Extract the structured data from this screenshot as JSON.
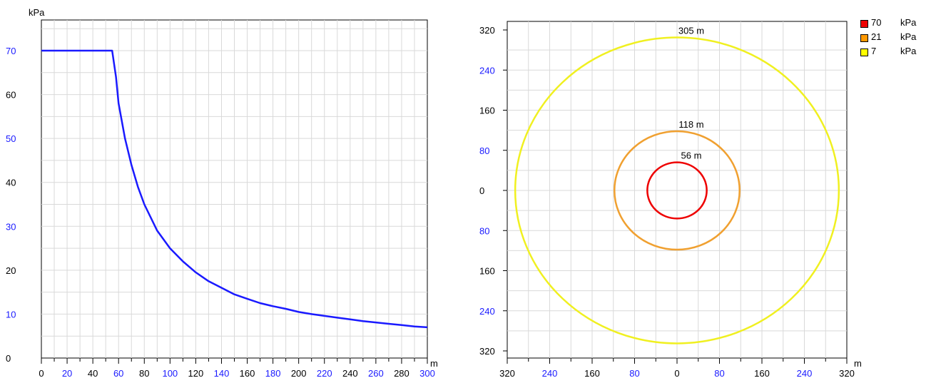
{
  "chart_data": [
    {
      "type": "line",
      "ylabel": "kPa",
      "xlabel": "m",
      "xlim": [
        0,
        300
      ],
      "ylim": [
        0,
        75
      ],
      "x_ticks": [
        "0",
        "20",
        "40",
        "60",
        "80",
        "100",
        "120",
        "140",
        "160",
        "180",
        "200",
        "220",
        "240",
        "260",
        "280",
        "300"
      ],
      "y_ticks": [
        "0",
        "10",
        "20",
        "30",
        "40",
        "50",
        "60",
        "70"
      ],
      "grid": true,
      "colors": {
        "line": "#1a1aff",
        "tick_blue": "#1a1aff",
        "tick_black": "#000000",
        "grid": "#d9d9d9"
      },
      "series": [
        {
          "x": [
            0,
            55,
            58,
            60,
            65,
            70,
            75,
            80,
            90,
            100,
            110,
            120,
            130,
            140,
            150,
            160,
            170,
            180,
            190,
            200,
            210,
            220,
            230,
            240,
            250,
            260,
            270,
            280,
            290,
            300
          ],
          "values": [
            70,
            70,
            64,
            58,
            50,
            44,
            39,
            35,
            29,
            25,
            22,
            19.5,
            17.5,
            16,
            14.5,
            13.5,
            12.5,
            11.8,
            11.2,
            10.5,
            10,
            9.6,
            9.2,
            8.8,
            8.4,
            8.1,
            7.8,
            7.5,
            7.2,
            7
          ]
        }
      ]
    },
    {
      "type": "scatter",
      "xlabel": "m",
      "xlim": [
        -320,
        320
      ],
      "ylim": [
        -320,
        320
      ],
      "x_ticks": [
        "320",
        "240",
        "160",
        "80",
        "0",
        "80",
        "160",
        "240",
        "320"
      ],
      "y_ticks": [
        "320",
        "240",
        "160",
        "80",
        "0",
        "80",
        "160",
        "240",
        "320"
      ],
      "grid": true,
      "colors": {
        "tick_blue": "#1a1aff",
        "tick_black": "#000000",
        "grid": "#d9d9d9"
      },
      "circles": [
        {
          "radius": 56,
          "label": "56 m",
          "color": "#ee0000"
        },
        {
          "radius": 118,
          "label": "118 m",
          "color": "#f0a030"
        },
        {
          "radius": 305,
          "label": "305 m",
          "color": "#f0f020"
        }
      ],
      "legend": {
        "placement": "right",
        "unit": "kPa",
        "items": [
          {
            "value": "70",
            "color": "#ee0000"
          },
          {
            "value": "21",
            "color": "#ff9900"
          },
          {
            "value": "7",
            "color": "#ffff00"
          }
        ]
      }
    }
  ]
}
